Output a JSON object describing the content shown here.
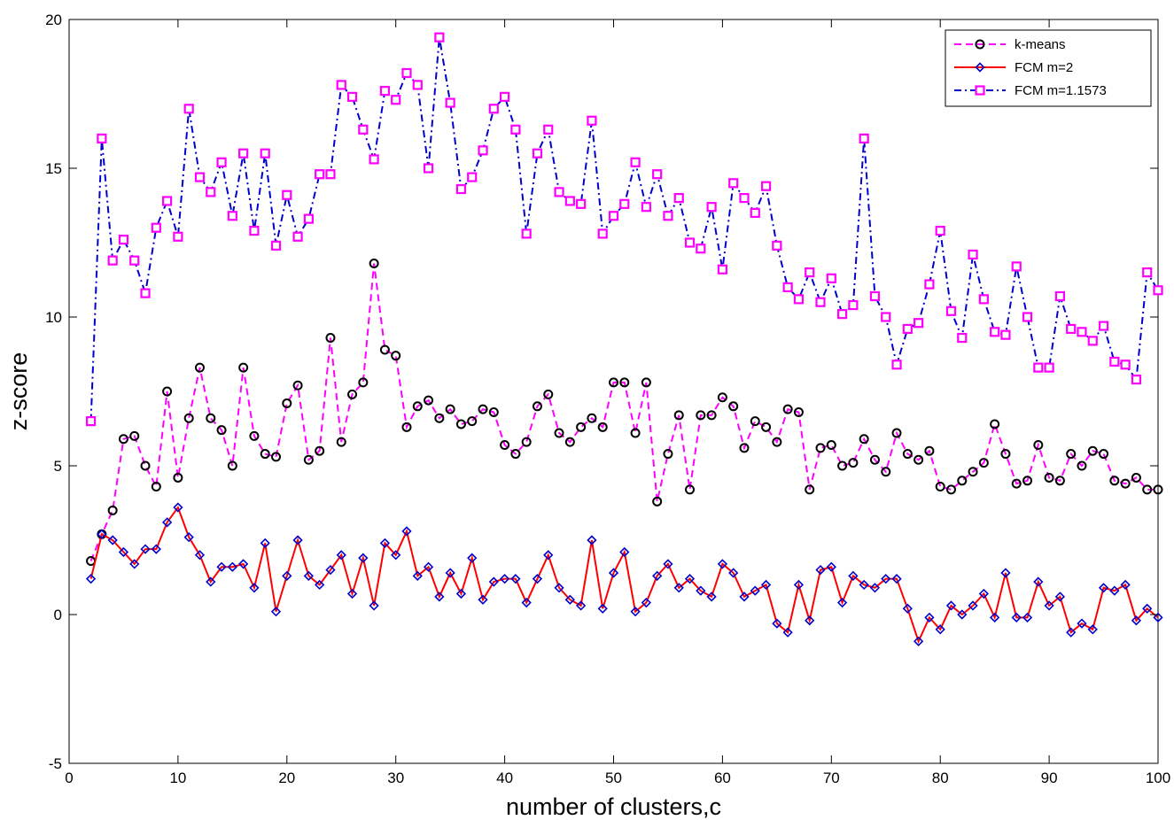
{
  "chart_data": {
    "type": "line",
    "xlabel": "number of clusters,c",
    "ylabel": "z-score",
    "xlim": [
      0,
      100
    ],
    "ylim": [
      -5,
      20
    ],
    "xticks": [
      0,
      10,
      20,
      30,
      40,
      50,
      60,
      70,
      80,
      90,
      100
    ],
    "yticks": [
      -5,
      0,
      5,
      10,
      15,
      20
    ],
    "grid": false,
    "legend_position": "top-right",
    "x": [
      2,
      3,
      4,
      5,
      6,
      7,
      8,
      9,
      10,
      11,
      12,
      13,
      14,
      15,
      16,
      17,
      18,
      19,
      20,
      21,
      22,
      23,
      24,
      25,
      26,
      27,
      28,
      29,
      30,
      31,
      32,
      33,
      34,
      35,
      36,
      37,
      38,
      39,
      40,
      41,
      42,
      43,
      44,
      45,
      46,
      47,
      48,
      49,
      50,
      51,
      52,
      53,
      54,
      55,
      56,
      57,
      58,
      59,
      60,
      61,
      62,
      63,
      64,
      65,
      66,
      67,
      68,
      69,
      70,
      71,
      72,
      73,
      74,
      75,
      76,
      77,
      78,
      79,
      80,
      81,
      82,
      83,
      84,
      85,
      86,
      87,
      88,
      89,
      90,
      91,
      92,
      93,
      94,
      95,
      96,
      97,
      98,
      99,
      100
    ],
    "series": [
      {
        "name": "k-means",
        "color": "#ff00ff",
        "line_style": "dashed",
        "marker": "circle",
        "marker_color": "#000000",
        "values": [
          1.8,
          2.7,
          3.5,
          5.9,
          6.0,
          5.0,
          4.3,
          7.5,
          4.6,
          6.6,
          8.3,
          6.6,
          6.2,
          5.0,
          8.3,
          6.0,
          5.4,
          5.3,
          7.1,
          7.7,
          5.2,
          5.5,
          9.3,
          5.8,
          7.4,
          7.8,
          11.8,
          8.9,
          8.7,
          6.3,
          7.0,
          7.2,
          6.6,
          6.9,
          6.4,
          6.5,
          6.9,
          6.8,
          5.7,
          5.4,
          5.8,
          7.0,
          7.4,
          6.1,
          5.8,
          6.3,
          6.6,
          6.3,
          7.8,
          7.8,
          6.1,
          7.8,
          3.8,
          5.4,
          6.7,
          4.2,
          6.7,
          6.7,
          7.3,
          7.0,
          5.6,
          6.5,
          6.3,
          5.8,
          6.9,
          6.8,
          4.2,
          5.6,
          5.7,
          5.0,
          5.1,
          5.9,
          5.2,
          4.8,
          6.1,
          5.4,
          5.2,
          5.5,
          4.3,
          4.2,
          4.5,
          4.8,
          5.1,
          6.4,
          5.4,
          4.4,
          4.5,
          5.7,
          4.6,
          4.5,
          5.4,
          5.0,
          5.5,
          5.4,
          4.5,
          4.4,
          4.6,
          4.2,
          4.2
        ]
      },
      {
        "name": "FCM m=2",
        "color": "#ff0000",
        "line_style": "solid",
        "marker": "diamond",
        "marker_color": "#0000cc",
        "values": [
          1.2,
          2.7,
          2.5,
          2.1,
          1.7,
          2.2,
          2.2,
          3.1,
          3.6,
          2.6,
          2.0,
          1.1,
          1.6,
          1.6,
          1.7,
          0.9,
          2.4,
          0.1,
          1.3,
          2.5,
          1.3,
          1.0,
          1.5,
          2.0,
          0.7,
          1.9,
          0.3,
          2.4,
          2.0,
          2.8,
          1.3,
          1.6,
          0.6,
          1.4,
          0.7,
          1.9,
          0.5,
          1.1,
          1.2,
          1.2,
          0.4,
          1.2,
          2.0,
          0.9,
          0.5,
          0.3,
          2.5,
          0.2,
          1.4,
          2.1,
          0.1,
          0.4,
          1.3,
          1.7,
          0.9,
          1.2,
          0.8,
          0.6,
          1.7,
          1.4,
          0.6,
          0.8,
          1.0,
          -0.3,
          -0.6,
          1.0,
          -0.2,
          1.5,
          1.6,
          0.4,
          1.3,
          1.0,
          0.9,
          1.2,
          1.2,
          0.2,
          -0.9,
          -0.1,
          -0.5,
          0.3,
          0.0,
          0.3,
          0.7,
          -0.1,
          1.4,
          -0.1,
          -0.1,
          1.1,
          0.3,
          0.6,
          -0.6,
          -0.3,
          -0.5,
          0.9,
          0.8,
          1.0,
          -0.2,
          0.2,
          -0.1
        ]
      },
      {
        "name": "FCM m=1.1573",
        "color": "#0000cc",
        "line_style": "dash-dot",
        "marker": "square",
        "marker_color": "#ff00ff",
        "values": [
          6.5,
          16.0,
          11.9,
          12.6,
          11.9,
          10.8,
          13.0,
          13.9,
          12.7,
          17.0,
          14.7,
          14.2,
          15.2,
          13.4,
          15.5,
          12.9,
          15.5,
          12.4,
          14.1,
          12.7,
          13.3,
          14.8,
          14.8,
          17.8,
          17.4,
          16.3,
          15.3,
          17.6,
          17.3,
          18.2,
          17.8,
          15.0,
          19.4,
          17.2,
          14.3,
          14.7,
          15.6,
          17.0,
          17.4,
          16.3,
          12.8,
          15.5,
          16.3,
          14.2,
          13.9,
          13.8,
          16.6,
          12.8,
          13.4,
          13.8,
          15.2,
          13.7,
          14.8,
          13.4,
          14.0,
          12.5,
          12.3,
          13.7,
          11.6,
          14.5,
          14.0,
          13.5,
          14.4,
          12.4,
          11.0,
          10.6,
          11.5,
          10.5,
          11.3,
          10.1,
          10.4,
          16.0,
          10.7,
          10.0,
          8.4,
          9.6,
          9.8,
          11.1,
          12.9,
          10.2,
          9.3,
          12.1,
          10.6,
          9.5,
          9.4,
          11.7,
          10.0,
          8.3,
          8.3,
          10.7,
          9.6,
          9.5,
          9.2,
          9.7,
          8.5,
          8.4,
          7.9,
          11.5,
          10.9
        ]
      }
    ]
  }
}
